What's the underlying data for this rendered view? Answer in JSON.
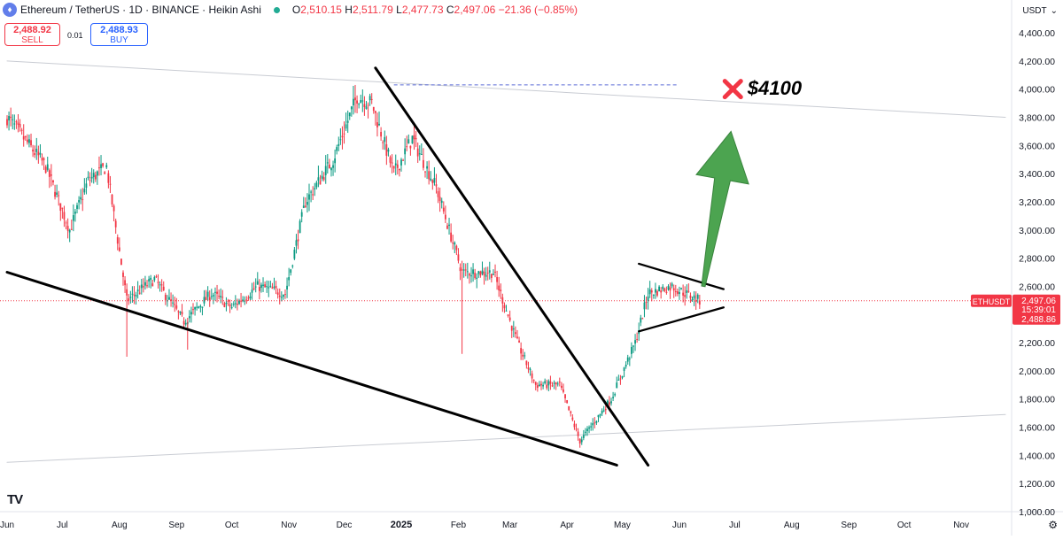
{
  "header": {
    "symbol": "Ethereum / TetherUS · 1D · BINANCE · Heikin Ashi",
    "o_label": "O",
    "o": "2,510.15",
    "h_label": "H",
    "h": "2,511.79",
    "l_label": "L",
    "l": "2,477.73",
    "c_label": "C",
    "c": "2,497.06",
    "change": "−21.36 (−0.85%)"
  },
  "trade": {
    "sell_price": "2,488.92",
    "sell_label": "SELL",
    "spread": "0.01",
    "buy_price": "2,488.93",
    "buy_label": "BUY"
  },
  "axis": {
    "currency": "USDT",
    "menu_icon": "chevron-down-icon"
  },
  "price_tag": {
    "symbol": "ETHUSDT",
    "price": "2,497.06",
    "countdown": "15:39:01",
    "bid": "2,488.86"
  },
  "annotation": {
    "target_text": "$4100"
  },
  "colors": {
    "up": "#089981",
    "down": "#f23645",
    "arrow": "#43a047",
    "x_mark": "#f23645",
    "target_line": "#5b6bd6"
  },
  "chart_data": {
    "type": "candlestick",
    "title": "Ethereum / TetherUS · 1D · BINANCE · Heikin Ashi",
    "ylim": [
      1000,
      4500
    ],
    "y_ticks": [
      "1,000.00",
      "1,200.00",
      "1,400.00",
      "1,600.00",
      "1,800.00",
      "2,000.00",
      "2,200.00",
      "2,400.00",
      "2,600.00",
      "2,800.00",
      "3,000.00",
      "3,200.00",
      "3,400.00",
      "3,600.00",
      "3,800.00",
      "4,000.00",
      "4,200.00",
      "4,400.00"
    ],
    "x_ticks": [
      {
        "label": "Jun",
        "date": "2024-06-01"
      },
      {
        "label": "Jul",
        "date": "2024-07-01"
      },
      {
        "label": "Aug",
        "date": "2024-08-01"
      },
      {
        "label": "Sep",
        "date": "2024-09-01"
      },
      {
        "label": "Oct",
        "date": "2024-10-01"
      },
      {
        "label": "Nov",
        "date": "2024-11-01"
      },
      {
        "label": "Dec",
        "date": "2024-12-01"
      },
      {
        "label": "2025",
        "date": "2025-01-01"
      },
      {
        "label": "Feb",
        "date": "2025-02-01"
      },
      {
        "label": "Mar",
        "date": "2025-03-01"
      },
      {
        "label": "Apr",
        "date": "2025-04-01"
      },
      {
        "label": "May",
        "date": "2025-05-01"
      },
      {
        "label": "Jun",
        "date": "2025-06-01"
      },
      {
        "label": "Jul",
        "date": "2025-07-01"
      },
      {
        "label": "Aug",
        "date": "2025-08-01"
      },
      {
        "label": "Sep",
        "date": "2025-09-01"
      },
      {
        "label": "Oct",
        "date": "2025-10-01"
      },
      {
        "label": "Nov",
        "date": "2025-11-01"
      }
    ],
    "x_range": [
      "2024-06-01",
      "2025-11-25"
    ],
    "closes": [
      {
        "date": "2024-06-01",
        "close": 3800
      },
      {
        "date": "2024-06-10",
        "close": 3650
      },
      {
        "date": "2024-06-22",
        "close": 3450
      },
      {
        "date": "2024-07-05",
        "close": 3000
      },
      {
        "date": "2024-07-15",
        "close": 3350
      },
      {
        "date": "2024-07-25",
        "close": 3450
      },
      {
        "date": "2024-08-05",
        "close": 2500
      },
      {
        "date": "2024-08-20",
        "close": 2650
      },
      {
        "date": "2024-09-05",
        "close": 2350
      },
      {
        "date": "2024-09-20",
        "close": 2550
      },
      {
        "date": "2024-10-01",
        "close": 2450
      },
      {
        "date": "2024-10-15",
        "close": 2600
      },
      {
        "date": "2024-10-30",
        "close": 2550
      },
      {
        "date": "2024-11-10",
        "close": 3200
      },
      {
        "date": "2024-11-25",
        "close": 3500
      },
      {
        "date": "2024-12-08",
        "close": 3950
      },
      {
        "date": "2024-12-16",
        "close": 3900
      },
      {
        "date": "2024-12-28",
        "close": 3400
      },
      {
        "date": "2025-01-07",
        "close": 3650
      },
      {
        "date": "2025-01-20",
        "close": 3300
      },
      {
        "date": "2025-02-03",
        "close": 2700
      },
      {
        "date": "2025-02-20",
        "close": 2700
      },
      {
        "date": "2025-03-05",
        "close": 2200
      },
      {
        "date": "2025-03-15",
        "close": 1900
      },
      {
        "date": "2025-03-28",
        "close": 1900
      },
      {
        "date": "2025-04-08",
        "close": 1500
      },
      {
        "date": "2025-04-25",
        "close": 1800
      },
      {
        "date": "2025-05-08",
        "close": 2200
      },
      {
        "date": "2025-05-15",
        "close": 2550
      },
      {
        "date": "2025-05-28",
        "close": 2600
      },
      {
        "date": "2025-06-12",
        "close": 2497
      }
    ],
    "drawings": [
      {
        "type": "trendline",
        "label": "falling wedge upper",
        "from": {
          "date": "2024-12-18",
          "price": 4150
        },
        "to": {
          "date": "2025-05-15",
          "price": 1330
        }
      },
      {
        "type": "trendline",
        "label": "falling wedge lower",
        "from": {
          "date": "2024-06-01",
          "price": 2700
        },
        "to": {
          "date": "2025-04-28",
          "price": 1330
        }
      },
      {
        "type": "trendline",
        "label": "pennant upper",
        "from": {
          "date": "2025-05-10",
          "price": 2760
        },
        "to": {
          "date": "2025-06-25",
          "price": 2580
        }
      },
      {
        "type": "trendline",
        "label": "pennant lower",
        "from": {
          "date": "2025-05-10",
          "price": 2280
        },
        "to": {
          "date": "2025-06-25",
          "price": 2450
        }
      },
      {
        "type": "trendline",
        "label": "long resistance",
        "from": {
          "date": "2024-06-01",
          "price": 4200
        },
        "to": {
          "date": "2025-11-25",
          "price": 3800
        }
      },
      {
        "type": "trendline",
        "label": "long support",
        "from": {
          "date": "2024-06-01",
          "price": 1350
        },
        "to": {
          "date": "2025-11-25",
          "price": 1690
        }
      },
      {
        "type": "horizontal",
        "label": "target level",
        "from_date": "2024-12-28",
        "to_date": "2025-05-31",
        "price": 4030
      },
      {
        "type": "arrow",
        "label": "breakout arrow",
        "from": {
          "date": "2025-06-14",
          "price": 2600
        },
        "to": {
          "date": "2025-06-29",
          "price": 3700
        }
      },
      {
        "type": "marker",
        "label": "x mark",
        "date": "2025-06-30",
        "price": 4000
      },
      {
        "type": "text",
        "label": "target",
        "date": "2025-07-08",
        "price": 4010
      }
    ]
  }
}
